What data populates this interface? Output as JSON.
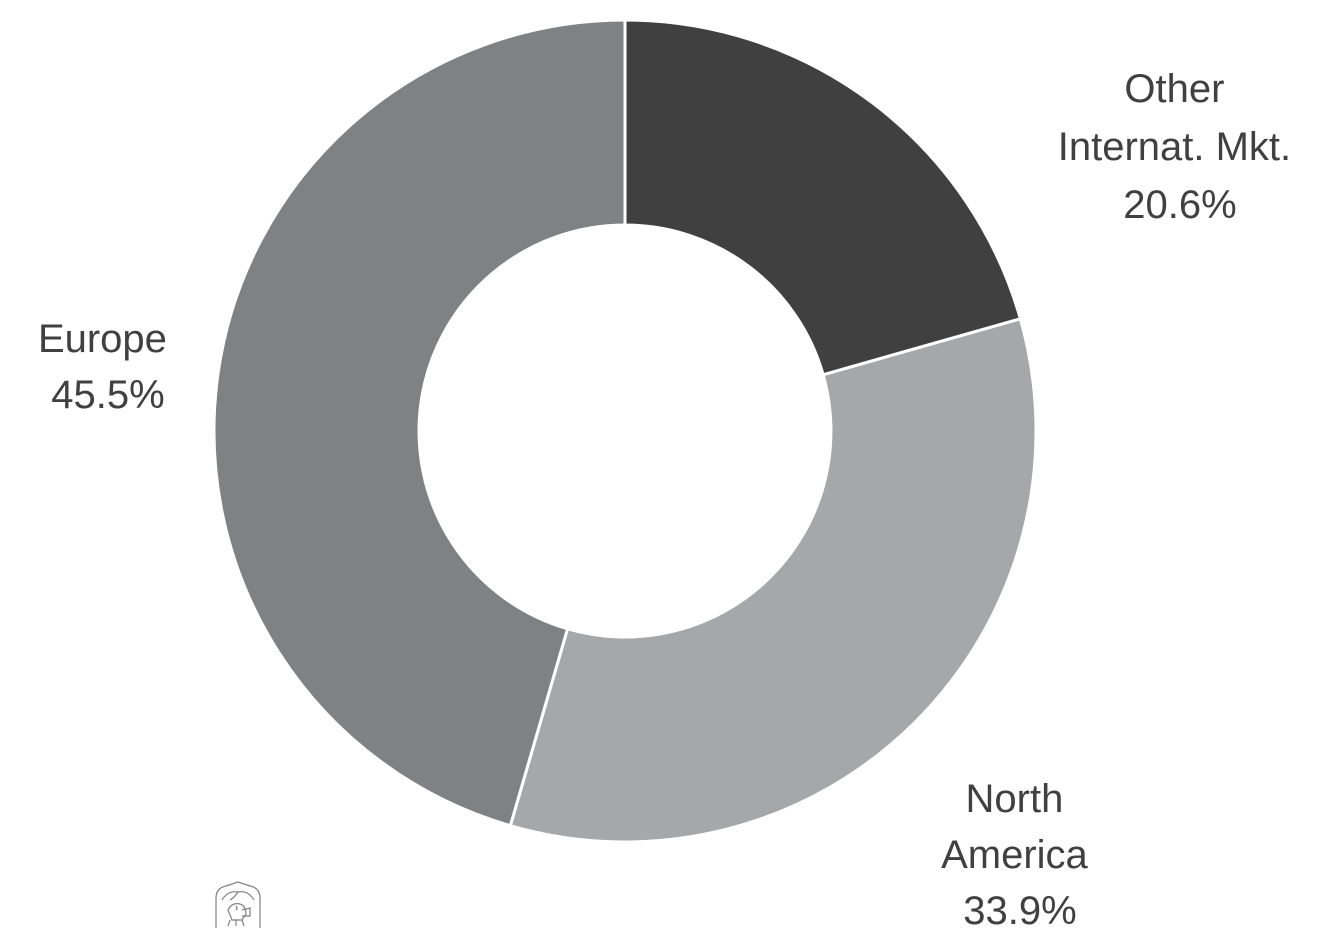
{
  "chart_data": {
    "type": "pie",
    "donut": true,
    "title": "",
    "start_angle_deg": 0,
    "direction": "clockwise",
    "slices": [
      {
        "label_lines": [
          "Other",
          "Internat. Mkt."
        ],
        "value_label": "20.6%",
        "value": 20.6,
        "color": "#404040"
      },
      {
        "label_lines": [
          "North",
          "America"
        ],
        "value_label": "33.9%",
        "value": 33.9,
        "color": "#a6a7a8"
      },
      {
        "label_lines": [
          "Europe"
        ],
        "value_label": "45.5%",
        "value": 45.5,
        "color": "#808183"
      }
    ],
    "legend": "none",
    "label_color": "#404040"
  },
  "logo": {
    "icon": "winged-lion-crest-icon",
    "color": "#808183"
  }
}
